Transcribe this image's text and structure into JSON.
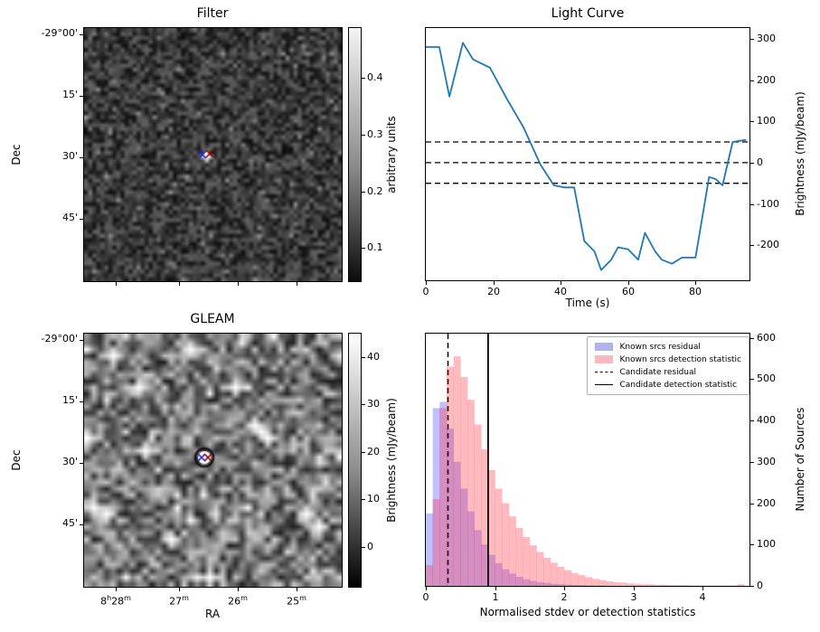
{
  "figure": {
    "background": "#ffffff"
  },
  "chart_data": [
    {
      "id": "filter",
      "type": "heatmap",
      "title": "Filter",
      "xlabel": "",
      "ylabel": "Dec",
      "ytick_labels": [
        "-29°00'",
        "15'",
        "30'",
        "45'"
      ],
      "colorbar": {
        "label": "arbitrary units",
        "ticks": [
          0.1,
          0.2,
          0.3,
          0.4
        ],
        "vmin": 0.04,
        "vmax": 0.49
      },
      "marker": {
        "x_frac": 0.475,
        "y_frac": 0.5,
        "blue": "#2020d0",
        "red": "#8b0000"
      },
      "style": {
        "noise": "fine-dark",
        "base_gray": 58,
        "gray_amp": 46
      }
    },
    {
      "id": "light_curve",
      "type": "line",
      "title": "Light Curve",
      "xlabel": "Time (s)",
      "ylabel": "Brightness (mJy/beam)",
      "xlim": [
        0,
        96
      ],
      "ylim": [
        -285,
        326
      ],
      "xticks": [
        0,
        20,
        40,
        60,
        80
      ],
      "yticks": [
        300,
        200,
        100,
        0,
        -100,
        -200
      ],
      "hlines": [
        50,
        0,
        -50
      ],
      "line_color": "#1f77b4",
      "x": [
        0,
        4,
        7,
        11,
        14,
        19,
        24,
        29,
        34,
        38,
        41,
        44,
        47,
        50,
        52,
        55,
        57,
        60,
        63,
        65,
        68,
        70,
        73,
        76,
        80,
        84,
        86,
        88,
        91,
        95
      ],
      "y": [
        280,
        280,
        160,
        290,
        250,
        230,
        155,
        85,
        -5,
        -55,
        -60,
        -60,
        -190,
        -215,
        -260,
        -235,
        -205,
        -210,
        -235,
        -170,
        -215,
        -235,
        -245,
        -230,
        -230,
        -35,
        -40,
        -55,
        50,
        55
      ]
    },
    {
      "id": "gleam",
      "type": "heatmap",
      "title": "GLEAM",
      "xlabel": "RA",
      "ylabel": "Dec",
      "xtick_labels": [
        "8h28m",
        "27m",
        "26m",
        "25m"
      ],
      "ytick_labels": [
        "-29°00'",
        "15'",
        "30'",
        "45'"
      ],
      "colorbar": {
        "label": "Brightness (mJy/beam)",
        "ticks": [
          0,
          10,
          20,
          30,
          40
        ],
        "vmin": -8.6,
        "vmax": 45.1
      },
      "marker": {
        "x_frac": 0.465,
        "y_frac": 0.49,
        "blue": "#2020d0",
        "red": "#8b0000"
      },
      "style": {
        "noise": "blobby-bright",
        "base_gray": 118,
        "gray_amp": 88,
        "bright_spots": [
          [
            0.115,
            0.078
          ],
          [
            0.42,
            0.05
          ],
          [
            0.59,
            0.2
          ],
          [
            0.195,
            0.21
          ],
          [
            0.01,
            0.4
          ],
          [
            0.028,
            0.7
          ],
          [
            0.07,
            0.72
          ],
          [
            0.324,
            0.82
          ],
          [
            0.48,
            0.97
          ],
          [
            0.88,
            0.715
          ],
          [
            0.915,
            0.77
          ],
          [
            0.73,
            0.4
          ],
          [
            0.237,
            0.468
          ],
          [
            0.655,
            0.35
          ]
        ]
      }
    },
    {
      "id": "histogram",
      "type": "bar",
      "title": "",
      "xlabel": "Normalised stdev or detection statistics",
      "ylabel": "Number of Sources",
      "xlim": [
        0,
        4.675
      ],
      "ylim": [
        0,
        610
      ],
      "xticks": [
        0,
        1,
        2,
        3,
        4
      ],
      "yticks": [
        0,
        100,
        200,
        300,
        400,
        500,
        600
      ],
      "bin_width": 0.1,
      "series": [
        {
          "name": "Known srcs residual",
          "color": "rgba(60,60,255,0.32)",
          "legend_color": "#b2b2f0",
          "values": [
            175,
            430,
            445,
            380,
            300,
            235,
            180,
            135,
            100,
            75,
            55,
            40,
            30,
            22,
            16,
            12,
            9,
            7,
            5,
            4,
            3,
            2,
            2,
            1,
            1,
            1
          ]
        },
        {
          "name": "Known srcs detection statistic",
          "color": "rgba(255,40,60,0.32)",
          "legend_color": "#ffb6bc",
          "values": [
            50,
            210,
            430,
            530,
            555,
            505,
            450,
            390,
            330,
            280,
            235,
            200,
            168,
            140,
            118,
            98,
            82,
            68,
            56,
            46,
            38,
            31,
            26,
            21,
            17,
            14,
            11,
            9,
            8,
            6,
            5,
            4,
            4,
            3,
            3,
            2,
            2,
            2,
            1,
            1,
            1,
            1,
            1,
            1,
            1,
            4
          ]
        }
      ],
      "vlines": [
        {
          "name": "Candidate residual",
          "x": 0.32,
          "style": "dashed"
        },
        {
          "name": "Candidate detection statistic",
          "x": 0.9,
          "style": "solid"
        }
      ],
      "legend_position": "upper right"
    }
  ]
}
